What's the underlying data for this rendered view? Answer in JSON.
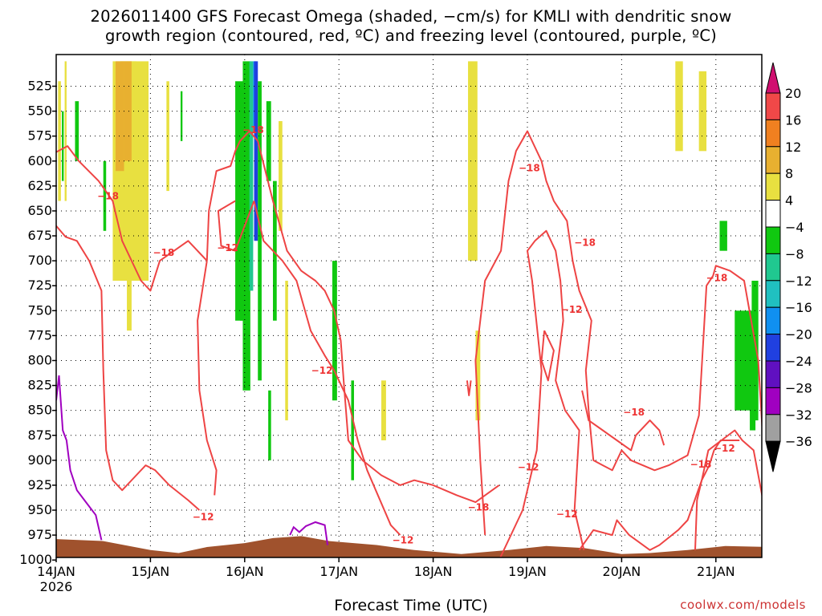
{
  "chart_data": {
    "type": "heatmap",
    "title_line1": "2026011400 GFS Forecast Omega (shaded, −cm/s) for KMLI with dendritic snow",
    "title_line2": "growth region (contoured, red, ºC) and freezing level (contoured, purple, ºC)",
    "xlabel": "Forecast Time (UTC)",
    "credit": "coolwx.com/models",
    "x_ticks": [
      "14JAN",
      "15JAN",
      "16JAN",
      "17JAN",
      "18JAN",
      "19JAN",
      "20JAN",
      "21JAN"
    ],
    "x_year": "2026",
    "xlim_days": [
      0,
      7.55
    ],
    "y_ticks": [
      525,
      550,
      575,
      600,
      625,
      650,
      675,
      700,
      725,
      750,
      775,
      800,
      825,
      850,
      875,
      900,
      925,
      950,
      975,
      1000
    ],
    "ylim_hpa": [
      500,
      1005
    ],
    "colorbar": {
      "labels": [
        "20",
        "16",
        "12",
        "8",
        "4",
        "−4",
        "−8",
        "−12",
        "−16",
        "−20",
        "−24",
        "−28",
        "−32",
        "−36"
      ],
      "colors": [
        "#d01070",
        "#f04848",
        "#f08020",
        "#e8b030",
        "#e8e040",
        "#ffffff",
        "#10c810",
        "#20c890",
        "#20c0c0",
        "#1090f0",
        "#2040e0",
        "#6010c0",
        "#a000c0",
        "#a0a0a0",
        "#000000"
      ]
    },
    "contour_labels": [
      {
        "text": "−18",
        "x": 0.55,
        "p": 635
      },
      {
        "text": "−18",
        "x": 1.14,
        "p": 692
      },
      {
        "text": "−12",
        "x": 1.82,
        "p": 687
      },
      {
        "text": "−12",
        "x": 1.56,
        "p": 957
      },
      {
        "text": "−18",
        "x": 2.09,
        "p": 569
      },
      {
        "text": "−12",
        "x": 2.82,
        "p": 810
      },
      {
        "text": "−12",
        "x": 3.68,
        "p": 980
      },
      {
        "text": "−18",
        "x": 4.48,
        "p": 947
      },
      {
        "text": "−18",
        "x": 5.02,
        "p": 607
      },
      {
        "text": "−18",
        "x": 5.61,
        "p": 682
      },
      {
        "text": "−12",
        "x": 5.47,
        "p": 749
      },
      {
        "text": "−12",
        "x": 5.01,
        "p": 907
      },
      {
        "text": "−12",
        "x": 5.42,
        "p": 954
      },
      {
        "text": "−18",
        "x": 6.13,
        "p": 852
      },
      {
        "text": "−18",
        "x": 6.84,
        "p": 904
      },
      {
        "text": "−18",
        "x": 7.01,
        "p": 717
      },
      {
        "text": "−12",
        "x": 7.09,
        "p": 888
      }
    ]
  }
}
